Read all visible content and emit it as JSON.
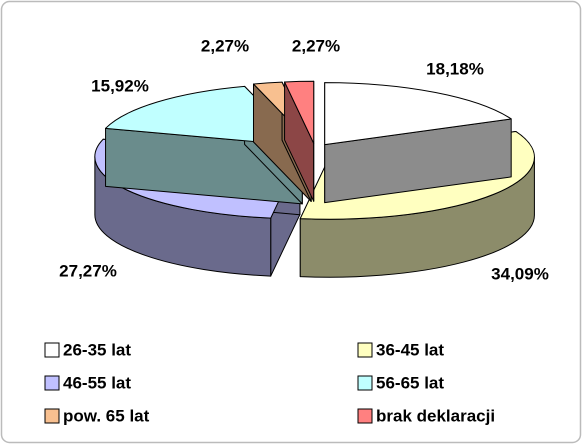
{
  "chart_data": {
    "type": "pie3d",
    "categories": [
      "26-35 lat",
      "36-45 lat",
      "46-55 lat",
      "56-65 lat",
      "pow. 65 lat",
      "brak deklaracji"
    ],
    "values": [
      18.18,
      34.09,
      27.27,
      15.92,
      2.27,
      2.27
    ],
    "value_labels": [
      "18,18%",
      "34,09%",
      "27,27%",
      "15,92%",
      "2,27%",
      "2,27%"
    ],
    "colors": [
      "#ffffff",
      "#ffffc0",
      "#c0c0ff",
      "#c0ffff",
      "#f8c090",
      "#ff8080"
    ],
    "exploded": true,
    "legend": "bottom"
  }
}
